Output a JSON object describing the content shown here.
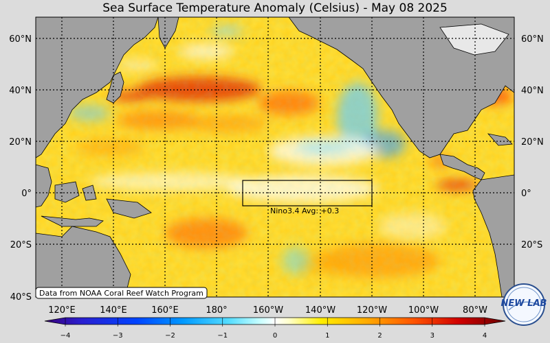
{
  "title": "Sea Surface Temperature Anomaly (Celsius) - May 08 2025",
  "lat_labels": [
    "60°N",
    "40°N",
    "20°N",
    "0°",
    "20°S",
    "40°S"
  ],
  "lon_labels": [
    "120°E",
    "140°E",
    "160°E",
    "180°",
    "160°W",
    "140°W",
    "120°W",
    "100°W",
    "80°W"
  ],
  "nino_label": "Nino3.4 Avg: +0.3",
  "source_text": "Data from NOAA Coral Reef Watch Program",
  "colorbar": {
    "ticks": [
      "−4",
      "−3",
      "−2",
      "−1",
      "0",
      "1",
      "2",
      "3",
      "4"
    ],
    "min": -4,
    "max": 4
  },
  "logo_text": "NEW LAB",
  "colors": {
    "land": "#a0a0a0",
    "background": "#dcdcdc",
    "warm": "#ffcc00",
    "hot": "#e00000",
    "cool": "#33ccff",
    "cold": "#0066ff"
  }
}
